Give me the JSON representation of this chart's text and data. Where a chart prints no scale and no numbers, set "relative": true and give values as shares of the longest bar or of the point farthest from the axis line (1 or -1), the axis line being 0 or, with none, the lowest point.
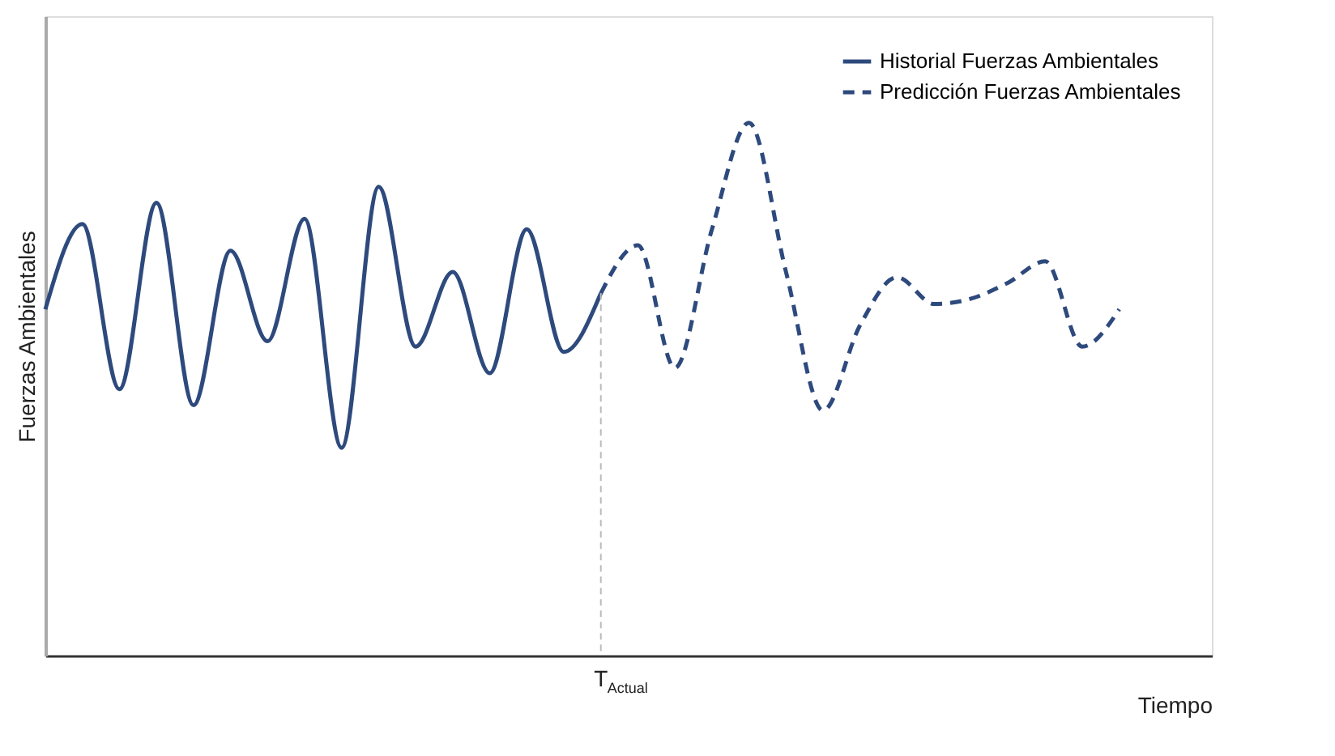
{
  "chart_data": {
    "type": "line",
    "relative": true,
    "xlabel": "Tiempo",
    "ylabel": "Fuerzas Ambientales",
    "legend": "top right",
    "marker": "none",
    "annotations": [
      "T$_{Actual}$"
    ],
    "categories": [
      null,
      null,
      null,
      null,
      null,
      null,
      null,
      null,
      null,
      null,
      null,
      null,
      null,
      null,
      null,
      null,
      null,
      null,
      null,
      null,
      null,
      null,
      null,
      null,
      null,
      null,
      null,
      null,
      null,
      null
    ],
    "series": [
      {
        "name": "Historial Fuerzas Ambientales",
        "color": "#2e4a7d",
        "line_style": "solid",
        "values": [
          0.65,
          0.81,
          0.5,
          0.85,
          0.47,
          0.76,
          0.59,
          0.82,
          0.39,
          0.88,
          0.58,
          0.72,
          0.53,
          0.8,
          0.57,
          0.68,
          null,
          null,
          null,
          null,
          null,
          null,
          null,
          null,
          null,
          null,
          null,
          null,
          null,
          null
        ]
      },
      {
        "name": "Predicción Fuerzas Ambientales",
        "color": "#2e4a7d",
        "line_style": "dashed",
        "values": [
          null,
          null,
          null,
          null,
          null,
          null,
          null,
          null,
          null,
          null,
          null,
          null,
          null,
          null,
          null,
          0.68,
          0.77,
          0.54,
          0.8,
          1.0,
          0.72,
          0.46,
          0.62,
          0.71,
          0.66,
          0.67,
          0.7,
          0.74,
          0.58,
          0.65
        ]
      }
    ]
  }
}
